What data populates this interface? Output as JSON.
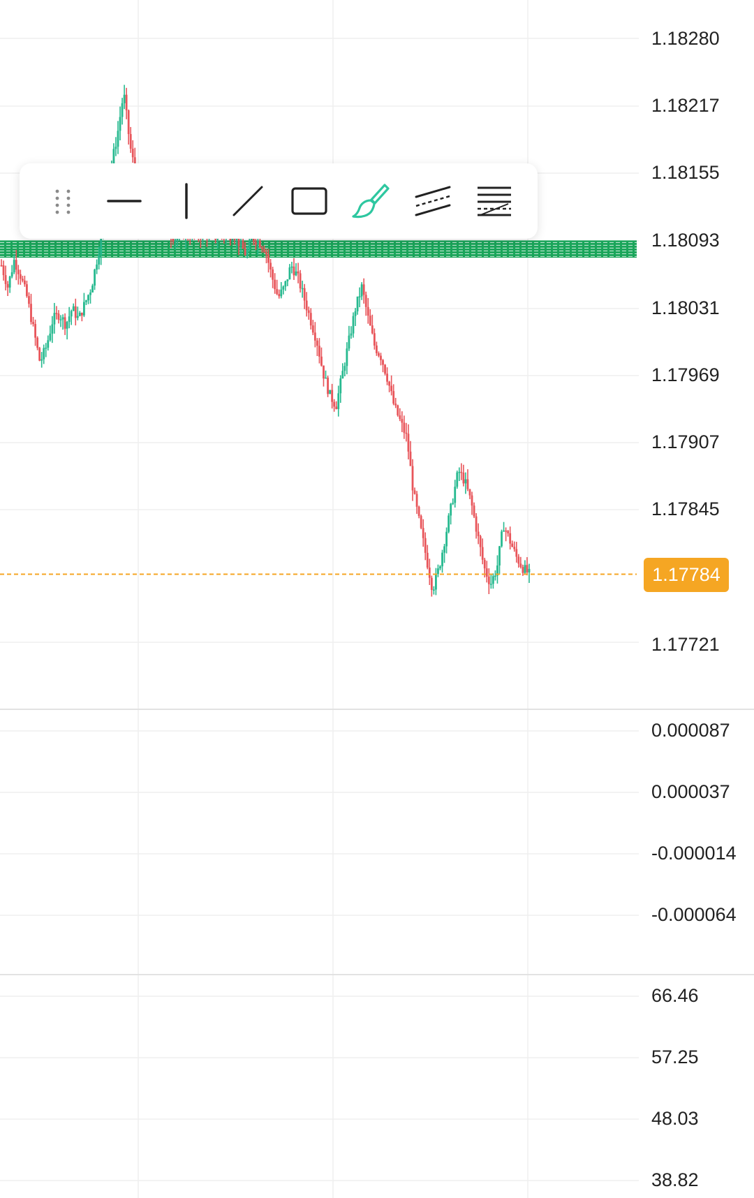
{
  "price_axis": {
    "labels": [
      "1.18280",
      "1.18217",
      "1.18155",
      "1.18093",
      "1.18031",
      "1.17969",
      "1.17907",
      "1.17845",
      "1.17721"
    ],
    "current_price": "1.17784"
  },
  "indicator1_axis": {
    "labels": [
      "0.000087",
      "0.000037",
      "-0.000014",
      "-0.000064"
    ]
  },
  "indicator2_axis": {
    "labels": [
      "66.46",
      "57.25",
      "48.03",
      "38.82"
    ]
  },
  "drawing_toolbar": {
    "tools": [
      {
        "name": "drag-handle-icon",
        "active": false
      },
      {
        "name": "horizontal-line-icon",
        "active": false
      },
      {
        "name": "vertical-line-icon",
        "active": false
      },
      {
        "name": "trend-line-icon",
        "active": false
      },
      {
        "name": "rectangle-icon",
        "active": false
      },
      {
        "name": "brush-icon",
        "active": true
      },
      {
        "name": "parallel-channel-icon",
        "active": false
      },
      {
        "name": "fib-retracement-icon",
        "active": false
      }
    ]
  },
  "colors": {
    "up": "#26b98f",
    "down": "#e8555a",
    "current_price": "#f5a623",
    "zone": "#1aa55a",
    "grid": "#efefef",
    "active_tool": "#2ec7a0"
  },
  "chart_data": {
    "type": "candlestick",
    "y_axis_price": {
      "min": 1.1768,
      "max": 1.183
    },
    "current_price": 1.17784,
    "horizontal_zone": {
      "from": 1.18077,
      "to": 1.18093
    },
    "close_path": [
      1.1807,
      1.1805,
      1.18075,
      1.1806,
      1.1804,
      1.1801,
      1.1798,
      1.17995,
      1.1802,
      1.18025,
      1.18015,
      1.1803,
      1.1802,
      1.18035,
      1.1805,
      1.1808,
      1.1811,
      1.1816,
      1.1819,
      1.1823,
      1.1818,
      1.1815,
      1.1814,
      1.1812,
      1.1811,
      1.18105,
      1.181,
      1.18095,
      1.181,
      1.18098,
      1.181,
      1.18098,
      1.181,
      1.18095,
      1.181,
      1.18095,
      1.181,
      1.1809,
      1.1808,
      1.18095,
      1.18092,
      1.18085,
      1.1806,
      1.1804,
      1.1805,
      1.1807,
      1.1806,
      1.1804,
      1.1802,
      1.18,
      1.1797,
      1.1795,
      1.1794,
      1.1797,
      1.18,
      1.1803,
      1.1805,
      1.1802,
      1.17995,
      1.17985,
      1.17965,
      1.1794,
      1.17925,
      1.1791,
      1.1786,
      1.1783,
      1.178,
      1.1777,
      1.1779,
      1.1782,
      1.1785,
      1.1788,
      1.1787,
      1.1785,
      1.1782,
      1.1779,
      1.17775,
      1.1779,
      1.1783,
      1.17815,
      1.178,
      1.1779,
      1.17784
    ]
  }
}
